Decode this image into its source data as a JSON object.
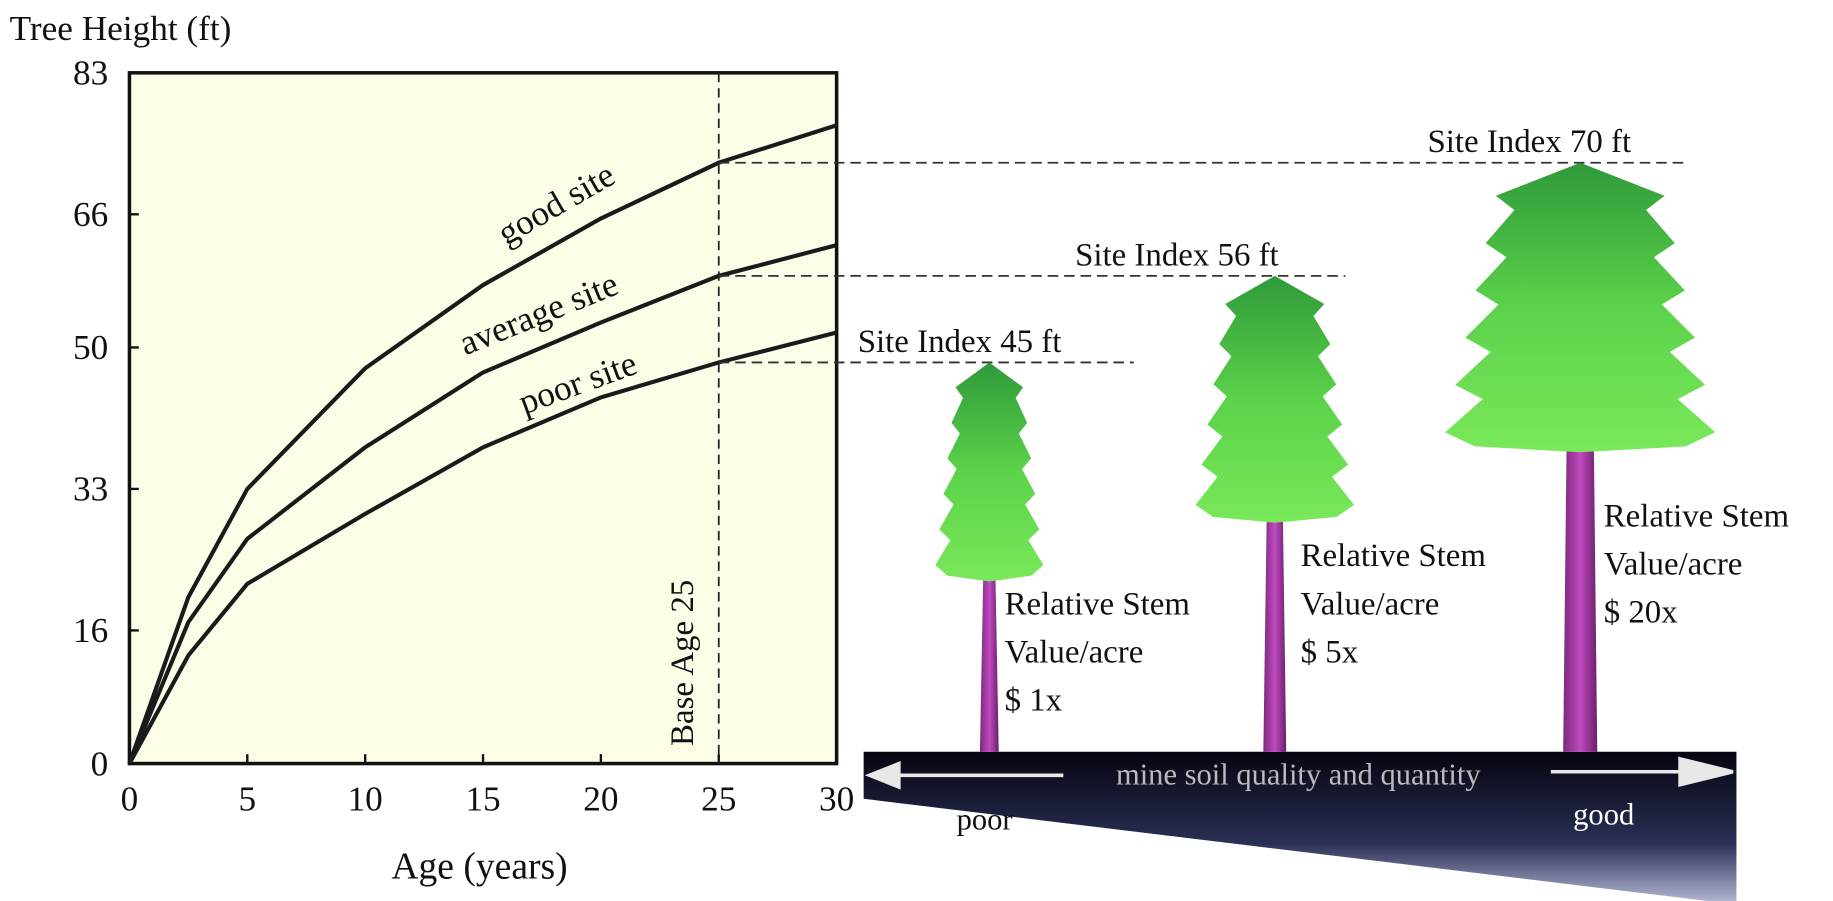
{
  "chart_data": {
    "type": "line",
    "y_label": "Tree Height (ft)",
    "x_label": "Age (years)",
    "x": [
      0,
      2.5,
      5,
      10,
      15,
      20,
      25,
      30
    ],
    "series": [
      {
        "name": "good site",
        "color": "#1a1a1a",
        "values": [
          0,
          20,
          33,
          47.5,
          57.5,
          65.5,
          72.2,
          76.7
        ]
      },
      {
        "name": "average site",
        "color": "#1a1a1a",
        "values": [
          0,
          17,
          27,
          38,
          47,
          53,
          58.6,
          62.3
        ]
      },
      {
        "name": "poor site",
        "color": "#1a1a1a",
        "values": [
          0,
          13,
          21.6,
          30,
          38,
          44,
          48.2,
          51.8
        ]
      }
    ],
    "xlim": [
      0,
      30
    ],
    "xticks": [
      0,
      5,
      10,
      15,
      20,
      25,
      30
    ],
    "ylim": [
      0,
      83
    ],
    "yticks": [
      0,
      16,
      33,
      50,
      66,
      83
    ],
    "annotations": [
      {
        "x": 25,
        "label": "Base Age 25"
      }
    ]
  },
  "diagram": {
    "trees": [
      {
        "site_index": "Site Index 45 ft",
        "lines": [
          "Relative Stem",
          "Value/acre",
          "$ 1x"
        ]
      },
      {
        "site_index": "Site Index 56 ft",
        "lines": [
          "Relative Stem",
          "Value/acre",
          "$ 5x"
        ]
      },
      {
        "site_index": "Site Index 70 ft",
        "lines": [
          "Relative Stem",
          "Value/acre",
          "$ 20x"
        ]
      }
    ],
    "soil_label": "mine soil quality and quantity",
    "poor_label": "poor",
    "good_label": "good"
  }
}
